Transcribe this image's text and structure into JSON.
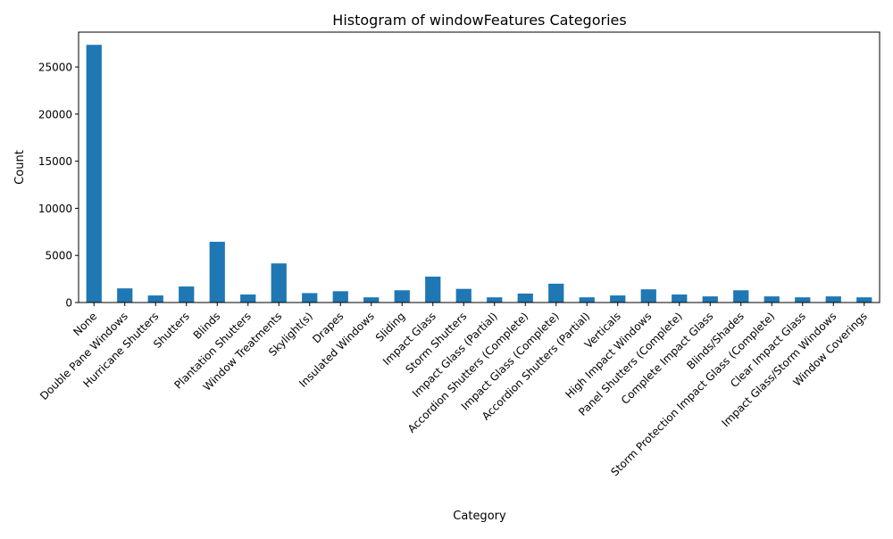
{
  "chart_data": {
    "type": "bar",
    "title": "Histogram of windowFeatures Categories",
    "xlabel": "Category",
    "ylabel": "Count",
    "ylim": [
      0,
      28700
    ],
    "yticks": [
      0,
      5000,
      10000,
      15000,
      20000,
      25000
    ],
    "grid": false,
    "legend": "none",
    "bar_color": "#1f77b4",
    "categories": [
      "None",
      "Double Pane Windows",
      "Hurricane Shutters",
      "Shutters",
      "Blinds",
      "Plantation Shutters",
      "Window Treatments",
      "Skylight(s)",
      "Drapes",
      "Insulated Windows",
      "Sliding",
      "Impact Glass",
      "Storm Shutters",
      "Impact Glass (Partial)",
      "Accordion Shutters (Complete)",
      "Impact Glass (Complete)",
      "Accordion Shutters (Partial)",
      "Verticals",
      "High Impact Windows",
      "Panel Shutters (Complete)",
      "Complete Impact Glass",
      "Blinds/Shades",
      "Storm Protection Impact Glass (Complete)",
      "Clear Impact Glass",
      "Impact Glass/Storm Windows",
      "Window Coverings"
    ],
    "values": [
      27350,
      1500,
      750,
      1700,
      6450,
      850,
      4150,
      1000,
      1200,
      550,
      1300,
      2750,
      1450,
      550,
      950,
      2000,
      550,
      750,
      1400,
      850,
      650,
      1300,
      650,
      550,
      650,
      550
    ]
  }
}
